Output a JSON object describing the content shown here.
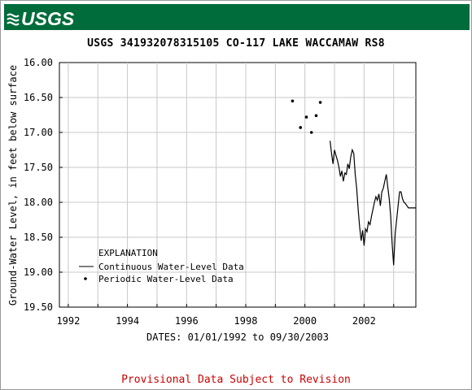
{
  "banner": {
    "logo_text": "USGS",
    "color": "#006c3b"
  },
  "chart_data": {
    "type": "line",
    "title": "USGS 341932078315105 CO-117 LAKE WACCAMAW RS8",
    "xlabel": "DATES: 01/01/1992 to 09/30/2003",
    "ylabel": "Ground-Water Level, in feet below surface",
    "xlim": [
      1991.7,
      2003.75
    ],
    "ylim": [
      19.5,
      16.0
    ],
    "y_inverted": true,
    "x_ticks": [
      1992,
      1994,
      1996,
      1998,
      2000,
      2002
    ],
    "y_ticks": [
      "16.00",
      "16.50",
      "17.00",
      "17.50",
      "18.00",
      "18.50",
      "19.00",
      "19.50"
    ],
    "grid": true,
    "legend": {
      "title": "EXPLANATION",
      "position": "bottom-left",
      "entries": [
        {
          "label": "Continuous Water-Level Data",
          "kind": "line"
        },
        {
          "label": "Periodic Water-Level Data",
          "kind": "point"
        }
      ]
    },
    "series": [
      {
        "name": "Periodic Water-Level Data",
        "kind": "points",
        "x": [
          1999.58,
          1999.85,
          2000.05,
          2000.22,
          2000.38,
          2000.52
        ],
        "y": [
          16.55,
          16.93,
          16.78,
          17.0,
          16.76,
          16.57
        ]
      },
      {
        "name": "Continuous Water-Level Data",
        "kind": "line",
        "x": [
          2000.85,
          2000.9,
          2000.95,
          2001.0,
          2001.05,
          2001.1,
          2001.15,
          2001.2,
          2001.25,
          2001.3,
          2001.35,
          2001.4,
          2001.45,
          2001.5,
          2001.55,
          2001.6,
          2001.65,
          2001.7,
          2001.75,
          2001.8,
          2001.85,
          2001.9,
          2001.95,
          2002.0,
          2002.05,
          2002.1,
          2002.15,
          2002.2,
          2002.25,
          2002.3,
          2002.35,
          2002.4,
          2002.45,
          2002.5,
          2002.55,
          2002.6,
          2002.65,
          2002.7,
          2002.75,
          2002.8,
          2002.85,
          2002.9,
          2002.95,
          2003.0,
          2003.05,
          2003.1,
          2003.15,
          2003.2,
          2003.25,
          2003.3,
          2003.35,
          2003.4,
          2003.45,
          2003.5,
          2003.55,
          2003.6,
          2003.65,
          2003.7,
          2003.75
        ],
        "y": [
          17.12,
          17.3,
          17.45,
          17.25,
          17.33,
          17.4,
          17.5,
          17.63,
          17.55,
          17.7,
          17.58,
          17.6,
          17.45,
          17.52,
          17.35,
          17.25,
          17.3,
          17.6,
          17.8,
          18.1,
          18.35,
          18.55,
          18.4,
          18.62,
          18.38,
          18.42,
          18.28,
          18.32,
          18.2,
          18.1,
          18.0,
          17.92,
          17.97,
          17.88,
          18.05,
          17.85,
          17.8,
          17.7,
          17.6,
          17.78,
          17.95,
          18.2,
          18.6,
          18.9,
          18.45,
          18.25,
          18.05,
          17.85,
          17.85,
          17.95,
          18.0,
          18.02,
          18.05,
          18.08,
          18.08,
          18.08,
          18.08,
          18.08,
          18.08
        ]
      }
    ]
  },
  "footer": {
    "text": "Provisional Data Subject to Revision",
    "color": "#cc0000"
  }
}
